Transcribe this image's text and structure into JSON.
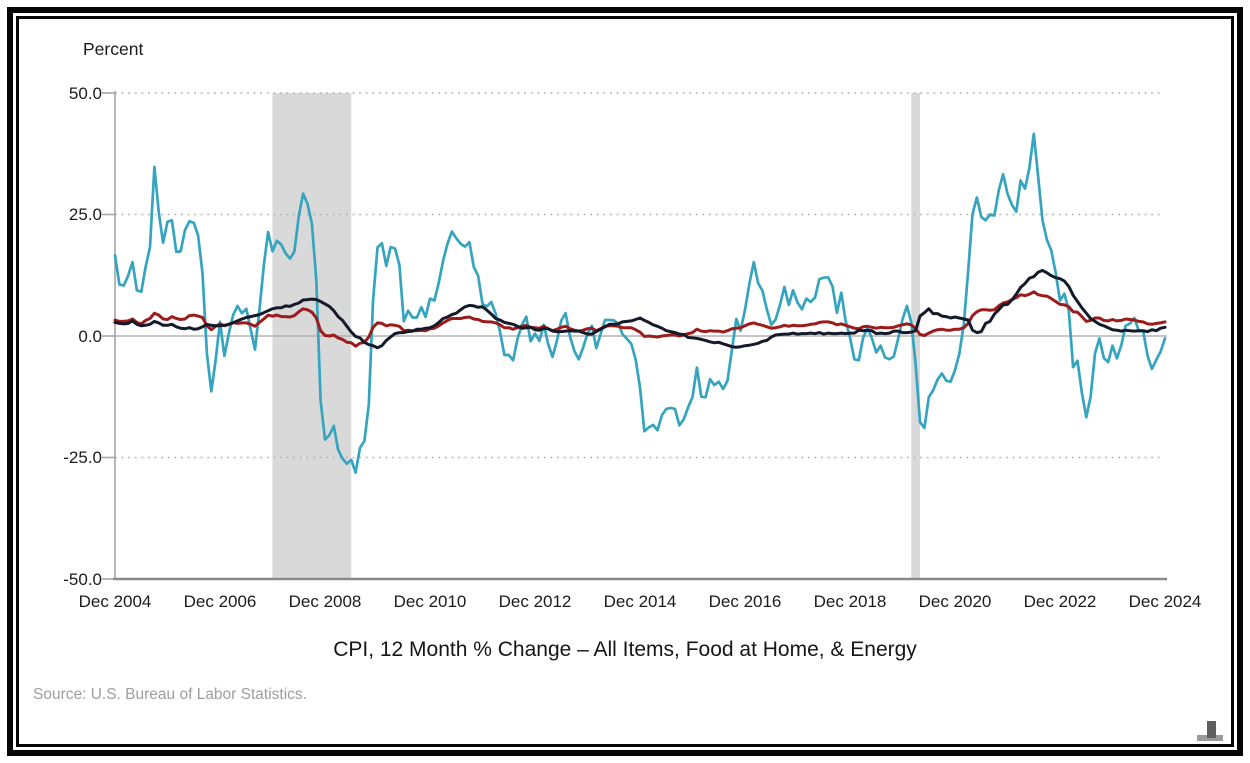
{
  "chart_data": {
    "type": "line",
    "title": "CPI, 12 Month % Change – All Items, Food at Home, & Energy",
    "ylabel": "Percent",
    "source": "Source: U.S. Bureau of Labor Statistics.",
    "x_start": "Dec 2004",
    "x_end": "Dec 2024",
    "frequency": "monthly",
    "x_tick_labels": [
      "Dec 2004",
      "Dec 2006",
      "Dec 2008",
      "Dec 2010",
      "Dec 2012",
      "Dec 2014",
      "Dec 2016",
      "Dec 2018",
      "Dec 2020",
      "Dec 2022",
      "Dec 2024"
    ],
    "x_tick_month_indices": [
      0,
      24,
      48,
      72,
      96,
      120,
      144,
      168,
      192,
      216,
      240
    ],
    "y_ticks": [
      50,
      25,
      0,
      -25,
      -50
    ],
    "y_tick_labels": [
      "50.0",
      "25.0",
      "0.0",
      "-25.0",
      "-50.0"
    ],
    "ylim": [
      -50,
      50
    ],
    "grid": "dotted horizontal lines at 50, 25 and -25; solid light line at 0; legend: none",
    "recession_bands": [
      {
        "from": "Dec 2007",
        "to": "Jun 2009",
        "from_index": 36,
        "to_index": 54
      },
      {
        "from": "Feb 2020",
        "to": "Apr 2020",
        "from_index": 182,
        "to_index": 184
      }
    ],
    "colors": {
      "all_items": "#9c1b1b",
      "food_at_home": "#141a29",
      "energy": "#35a4bf",
      "recession_band": "#d9d9d9",
      "gridline": "#b2b2b2",
      "zero_line": "#b3b3b3",
      "axis": "#8a8a8a",
      "text": "#1b1b1b",
      "source_text": "#9e9e9e"
    },
    "series": [
      {
        "name": "Energy",
        "color_key": "energy",
        "values": [
          16.6,
          10.6,
          10.4,
          12.4,
          15.2,
          9.4,
          9.1,
          14.2,
          18.3,
          34.8,
          25.4,
          19.2,
          23.5,
          23.8,
          17.3,
          17.4,
          21.8,
          23.6,
          23.3,
          20.7,
          12.9,
          -3.6,
          -11.4,
          -5.0,
          2.9,
          -4.1,
          0.5,
          4.3,
          6.2,
          4.7,
          5.6,
          1.4,
          -2.8,
          5.3,
          14.5,
          21.4,
          17.4,
          19.6,
          18.8,
          17.0,
          15.9,
          17.4,
          24.7,
          29.3,
          27.2,
          23.1,
          11.5,
          -13.3,
          -21.3,
          -20.4,
          -18.5,
          -23.4,
          -25.2,
          -26.3,
          -25.5,
          -28.1,
          -23.0,
          -21.6,
          -14.1,
          7.4,
          18.2,
          19.1,
          14.4,
          18.3,
          18.0,
          14.6,
          3.0,
          5.2,
          3.8,
          3.8,
          5.9,
          3.9,
          7.7,
          7.3,
          11.0,
          15.5,
          19.0,
          21.5,
          20.1,
          19.0,
          18.4,
          19.3,
          14.2,
          12.4,
          6.6,
          6.1,
          7.0,
          4.6,
          0.9,
          -3.9,
          -3.9,
          -5.0,
          -0.6,
          2.3,
          4.0,
          -1.1,
          0.5,
          -1.0,
          2.3,
          -1.6,
          -4.3,
          -1.0,
          3.2,
          4.7,
          -0.1,
          -3.1,
          -4.8,
          -2.4,
          0.5,
          2.1,
          -2.5,
          0.4,
          3.3,
          3.3,
          3.2,
          2.6,
          0.4,
          -0.6,
          -1.6,
          -4.8,
          -10.6,
          -19.6,
          -18.8,
          -18.3,
          -19.4,
          -16.3,
          -15.0,
          -14.8,
          -15.0,
          -18.4,
          -17.1,
          -14.7,
          -12.6,
          -6.5,
          -12.5,
          -12.6,
          -8.9,
          -10.1,
          -9.4,
          -10.9,
          -9.2,
          -2.9,
          3.5,
          1.1,
          5.4,
          10.8,
          15.2,
          10.9,
          9.3,
          5.4,
          2.3,
          3.4,
          6.4,
          10.1,
          6.4,
          9.4,
          6.9,
          5.5,
          7.7,
          7.0,
          7.9,
          11.7,
          12.0,
          12.1,
          10.2,
          4.8,
          8.9,
          3.1,
          -0.3,
          -4.8,
          -5.0,
          -0.4,
          1.7,
          -0.5,
          -3.4,
          -2.0,
          -4.4,
          -4.8,
          -4.2,
          -0.6,
          3.4,
          6.2,
          2.8,
          -5.7,
          -17.7,
          -18.9,
          -12.6,
          -11.2,
          -9.0,
          -7.7,
          -9.2,
          -9.4,
          -7.0,
          -3.6,
          2.4,
          13.2,
          25.1,
          28.5,
          24.5,
          23.8,
          25.0,
          24.8,
          30.0,
          33.3,
          29.3,
          27.0,
          25.6,
          32.0,
          30.3,
          34.6,
          41.6,
          32.9,
          23.8,
          19.8,
          17.6,
          13.1,
          7.3,
          8.7,
          5.2,
          -6.4,
          -5.1,
          -11.7,
          -16.7,
          -12.5,
          -3.6,
          -0.5,
          -4.5,
          -5.4,
          -2.0,
          -4.6,
          -1.9,
          2.1,
          2.6,
          3.7,
          1.0,
          1.1,
          -4.0,
          -6.8,
          -4.9,
          -3.2,
          -0.5
        ]
      },
      {
        "name": "All Items",
        "color_key": "all_items",
        "values": [
          3.3,
          3.0,
          3.0,
          3.1,
          3.5,
          2.8,
          2.5,
          3.2,
          3.6,
          4.7,
          4.3,
          3.5,
          3.4,
          4.0,
          3.6,
          3.4,
          3.5,
          4.2,
          4.3,
          4.1,
          3.8,
          2.1,
          1.3,
          2.0,
          2.5,
          2.1,
          2.4,
          2.8,
          2.6,
          2.7,
          2.7,
          2.4,
          2.0,
          2.8,
          3.5,
          4.3,
          4.1,
          4.3,
          4.0,
          4.0,
          3.9,
          4.2,
          5.0,
          5.6,
          5.4,
          4.9,
          3.7,
          1.1,
          0.1,
          0.0,
          0.2,
          -0.4,
          -0.7,
          -1.3,
          -1.4,
          -2.1,
          -1.5,
          -1.3,
          -0.2,
          1.8,
          2.7,
          2.6,
          2.1,
          2.3,
          2.2,
          2.0,
          1.1,
          1.2,
          1.1,
          1.1,
          1.2,
          1.1,
          1.5,
          1.6,
          2.1,
          2.7,
          3.2,
          3.6,
          3.6,
          3.6,
          3.8,
          3.9,
          3.5,
          3.4,
          3.0,
          2.9,
          2.9,
          2.7,
          2.3,
          1.7,
          1.7,
          1.4,
          1.7,
          2.0,
          2.2,
          1.8,
          1.7,
          1.6,
          2.0,
          1.5,
          1.1,
          1.4,
          1.8,
          2.0,
          1.5,
          1.2,
          1.0,
          1.2,
          1.5,
          1.6,
          1.1,
          1.5,
          2.0,
          2.1,
          2.1,
          2.0,
          1.7,
          1.7,
          1.7,
          1.3,
          0.8,
          -0.1,
          0.0,
          -0.1,
          -0.2,
          0.0,
          0.1,
          0.2,
          0.2,
          0.0,
          0.2,
          0.5,
          0.7,
          1.4,
          1.0,
          0.9,
          1.1,
          1.0,
          1.0,
          0.8,
          1.1,
          1.5,
          1.6,
          1.7,
          2.1,
          2.5,
          2.7,
          2.4,
          2.2,
          1.9,
          1.6,
          1.7,
          1.9,
          2.2,
          2.0,
          2.2,
          2.1,
          2.1,
          2.2,
          2.4,
          2.5,
          2.8,
          2.9,
          2.9,
          2.7,
          2.3,
          2.5,
          2.2,
          1.9,
          1.6,
          1.5,
          1.9,
          2.0,
          1.8,
          1.6,
          1.8,
          1.7,
          1.7,
          1.8,
          2.1,
          2.3,
          2.5,
          2.3,
          1.5,
          0.3,
          0.1,
          0.6,
          1.0,
          1.3,
          1.4,
          1.2,
          1.2,
          1.4,
          1.4,
          1.7,
          2.6,
          4.2,
          5.0,
          5.4,
          5.4,
          5.3,
          5.4,
          6.2,
          6.8,
          7.0,
          7.5,
          7.9,
          8.5,
          8.3,
          8.6,
          9.1,
          8.5,
          8.3,
          8.2,
          7.7,
          7.1,
          6.5,
          6.4,
          6.0,
          5.0,
          4.9,
          4.0,
          3.0,
          3.2,
          3.7,
          3.7,
          3.2,
          3.1,
          3.4,
          3.1,
          3.2,
          3.5,
          3.4,
          3.3,
          3.0,
          2.9,
          2.5,
          2.4,
          2.6,
          2.7,
          2.9
        ]
      },
      {
        "name": "Food at Home",
        "color_key": "food_at_home",
        "values": [
          2.8,
          2.6,
          2.5,
          2.6,
          3.1,
          2.4,
          2.1,
          2.2,
          2.4,
          3.0,
          2.7,
          2.2,
          2.2,
          2.4,
          1.9,
          1.6,
          1.5,
          1.7,
          1.4,
          1.5,
          1.9,
          2.4,
          2.2,
          2.1,
          2.1,
          2.2,
          2.4,
          2.7,
          3.1,
          3.5,
          3.8,
          4.0,
          4.2,
          4.4,
          4.8,
          5.2,
          5.6,
          5.8,
          5.8,
          6.2,
          6.1,
          6.5,
          6.8,
          7.4,
          7.5,
          7.6,
          7.5,
          7.1,
          6.6,
          6.1,
          5.2,
          4.0,
          3.2,
          2.0,
          0.8,
          -0.1,
          -0.4,
          -1.3,
          -1.8,
          -2.0,
          -2.4,
          -2.0,
          -0.9,
          -0.2,
          0.5,
          0.7,
          0.7,
          0.9,
          1.0,
          1.4,
          1.4,
          1.6,
          1.7,
          2.1,
          2.8,
          3.6,
          3.9,
          4.4,
          4.7,
          5.4,
          6.0,
          6.3,
          6.2,
          5.9,
          6.0,
          5.3,
          4.5,
          3.6,
          3.3,
          2.8,
          2.6,
          2.4,
          2.0,
          1.6,
          1.7,
          1.8,
          1.3,
          1.2,
          1.6,
          1.5,
          1.0,
          0.9,
          0.9,
          1.0,
          1.1,
          1.0,
          1.0,
          0.7,
          0.4,
          0.4,
          0.9,
          1.4,
          1.9,
          2.4,
          2.4,
          2.5,
          2.9,
          3.0,
          3.1,
          3.4,
          3.7,
          3.2,
          2.8,
          2.3,
          2.0,
          1.6,
          1.1,
          0.9,
          0.7,
          0.4,
          0.3,
          -0.3,
          -0.4,
          -0.5,
          -0.7,
          -0.9,
          -1.2,
          -1.4,
          -1.3,
          -1.6,
          -1.9,
          -2.2,
          -2.3,
          -2.2,
          -2.0,
          -1.9,
          -1.7,
          -1.5,
          -1.1,
          -0.9,
          -0.2,
          0.2,
          0.3,
          0.4,
          0.4,
          0.6,
          0.4,
          0.5,
          0.5,
          0.6,
          0.5,
          0.7,
          0.4,
          0.6,
          0.5,
          0.5,
          0.6,
          0.5,
          0.6,
          0.6,
          1.2,
          1.1,
          1.2,
          1.1,
          0.5,
          0.6,
          0.5,
          0.6,
          1.0,
          1.0,
          0.7,
          0.7,
          0.8,
          1.1,
          4.1,
          4.8,
          5.6,
          4.6,
          4.6,
          4.1,
          4.0,
          3.7,
          3.9,
          3.7,
          3.5,
          3.3,
          1.2,
          0.7,
          0.9,
          2.6,
          3.0,
          4.5,
          5.4,
          6.4,
          6.5,
          7.4,
          8.6,
          10.0,
          10.8,
          11.9,
          12.2,
          13.1,
          13.5,
          13.0,
          12.4,
          12.0,
          11.8,
          11.3,
          10.2,
          8.4,
          7.1,
          5.8,
          4.7,
          3.6,
          3.0,
          2.4,
          2.1,
          1.7,
          1.3,
          1.2,
          1.0,
          1.2,
          1.1,
          1.0,
          1.1,
          1.1,
          0.9,
          1.3,
          1.1,
          1.6,
          1.8
        ]
      }
    ]
  }
}
